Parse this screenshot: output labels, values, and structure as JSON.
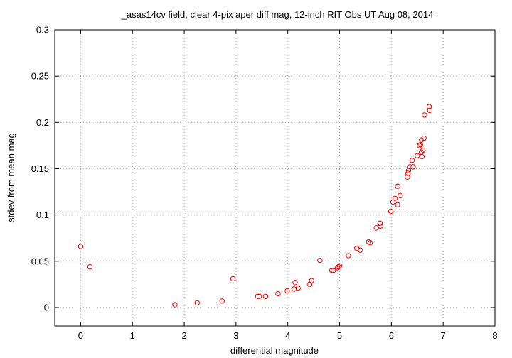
{
  "chart_data": {
    "type": "scatter",
    "title": "_asas14cv field, clear 4-pix aper diff mag,  12-inch RIT Obs UT Aug 08, 2014",
    "xlabel": "differential magnitude",
    "ylabel": "stdev from mean mag",
    "xlim": [
      -0.5,
      8
    ],
    "ylim": [
      -0.02,
      0.3
    ],
    "x_ticks": [
      "0",
      "1",
      "2",
      "3",
      "4",
      "5",
      "6",
      "7",
      "8"
    ],
    "y_ticks": [
      "0",
      "0.05",
      "0.1",
      "0.15",
      "0.2",
      "0.25",
      "0.3"
    ],
    "grid": true,
    "marker": "open-circle",
    "series_color": "#ff0000",
    "points": [
      {
        "x": 0.0,
        "y": 0.066
      },
      {
        "x": 0.18,
        "y": 0.044
      },
      {
        "x": 1.82,
        "y": 0.003
      },
      {
        "x": 2.25,
        "y": 0.005
      },
      {
        "x": 2.73,
        "y": 0.007
      },
      {
        "x": 2.94,
        "y": 0.031
      },
      {
        "x": 3.42,
        "y": 0.012
      },
      {
        "x": 3.45,
        "y": 0.012
      },
      {
        "x": 3.57,
        "y": 0.012
      },
      {
        "x": 3.81,
        "y": 0.015
      },
      {
        "x": 3.99,
        "y": 0.018
      },
      {
        "x": 4.12,
        "y": 0.02
      },
      {
        "x": 4.14,
        "y": 0.027
      },
      {
        "x": 4.2,
        "y": 0.021
      },
      {
        "x": 4.42,
        "y": 0.025
      },
      {
        "x": 4.46,
        "y": 0.029
      },
      {
        "x": 4.62,
        "y": 0.051
      },
      {
        "x": 4.85,
        "y": 0.04
      },
      {
        "x": 4.88,
        "y": 0.04
      },
      {
        "x": 4.96,
        "y": 0.043
      },
      {
        "x": 4.98,
        "y": 0.044
      },
      {
        "x": 5.0,
        "y": 0.045
      },
      {
        "x": 5.17,
        "y": 0.056
      },
      {
        "x": 5.33,
        "y": 0.064
      },
      {
        "x": 5.4,
        "y": 0.062
      },
      {
        "x": 5.56,
        "y": 0.071
      },
      {
        "x": 5.59,
        "y": 0.07
      },
      {
        "x": 5.71,
        "y": 0.086
      },
      {
        "x": 5.78,
        "y": 0.091
      },
      {
        "x": 5.79,
        "y": 0.088
      },
      {
        "x": 5.99,
        "y": 0.104
      },
      {
        "x": 6.03,
        "y": 0.114
      },
      {
        "x": 6.07,
        "y": 0.118
      },
      {
        "x": 6.12,
        "y": 0.111
      },
      {
        "x": 6.12,
        "y": 0.131
      },
      {
        "x": 6.17,
        "y": 0.121
      },
      {
        "x": 6.31,
        "y": 0.141
      },
      {
        "x": 6.32,
        "y": 0.145
      },
      {
        "x": 6.33,
        "y": 0.148
      },
      {
        "x": 6.36,
        "y": 0.152
      },
      {
        "x": 6.4,
        "y": 0.159
      },
      {
        "x": 6.42,
        "y": 0.152
      },
      {
        "x": 6.5,
        "y": 0.164
      },
      {
        "x": 6.54,
        "y": 0.175
      },
      {
        "x": 6.56,
        "y": 0.176
      },
      {
        "x": 6.58,
        "y": 0.168
      },
      {
        "x": 6.58,
        "y": 0.181
      },
      {
        "x": 6.59,
        "y": 0.163
      },
      {
        "x": 6.61,
        "y": 0.17
      },
      {
        "x": 6.63,
        "y": 0.183
      },
      {
        "x": 6.64,
        "y": 0.208
      },
      {
        "x": 6.73,
        "y": 0.217
      },
      {
        "x": 6.74,
        "y": 0.213
      }
    ]
  }
}
